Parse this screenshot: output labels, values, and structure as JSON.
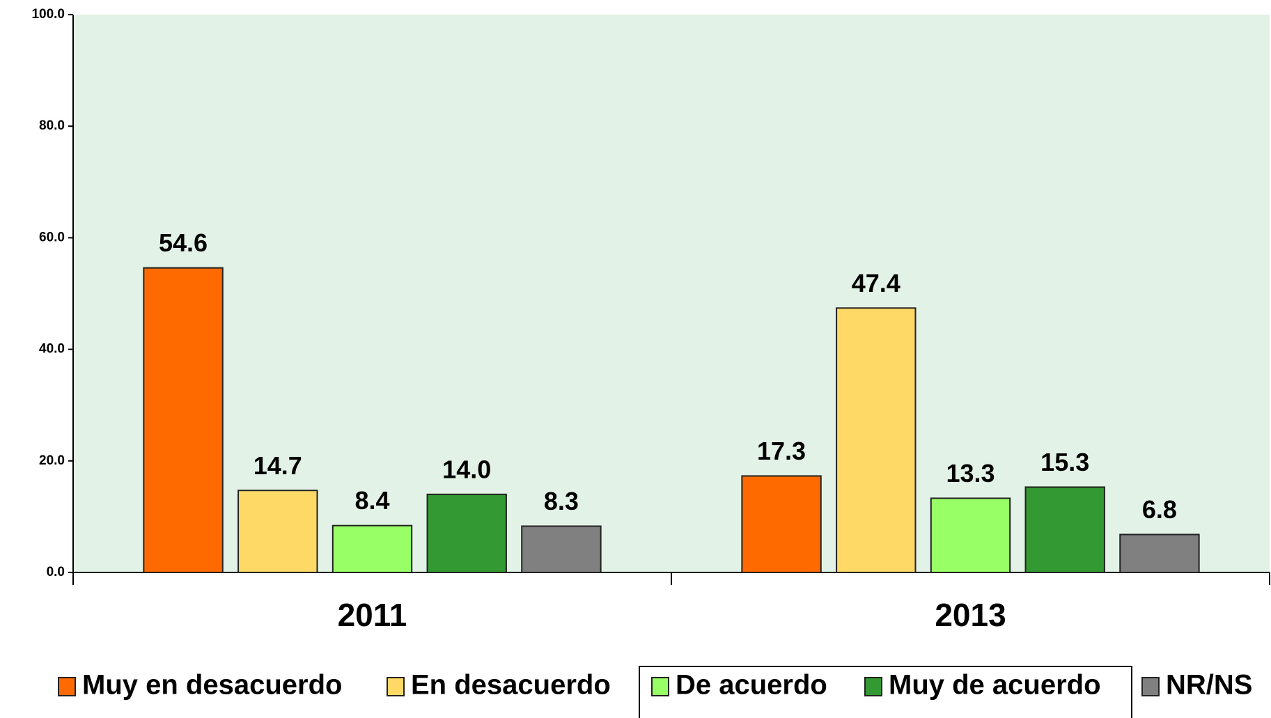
{
  "chart_data": {
    "type": "bar",
    "categories": [
      "2011",
      "2013"
    ],
    "series": [
      {
        "name": "Muy en desacuerdo",
        "color": "#ff6a00",
        "values": [
          54.6,
          17.3
        ],
        "value_labels": [
          "54.6",
          "17.3"
        ]
      },
      {
        "name": "En desacuerdo",
        "color": "#ffd966",
        "values": [
          14.7,
          47.4
        ],
        "value_labels": [
          "14.7",
          "47.4"
        ]
      },
      {
        "name": "De acuerdo",
        "color": "#99ff66",
        "values": [
          8.4,
          13.3
        ],
        "value_labels": [
          "8.4",
          "13.3"
        ]
      },
      {
        "name": "Muy de acuerdo",
        "color": "#339933",
        "values": [
          14.0,
          15.3
        ],
        "value_labels": [
          "14.0",
          "15.3"
        ]
      },
      {
        "name": "NR/NS",
        "color": "#808080",
        "values": [
          8.3,
          6.8
        ],
        "value_labels": [
          "8.3",
          "6.8"
        ]
      }
    ],
    "ylim": [
      0,
      100
    ],
    "yticks": [
      {
        "value": 0,
        "label": "0.0"
      },
      {
        "value": 20,
        "label": "20.0"
      },
      {
        "value": 40,
        "label": "40.0"
      },
      {
        "value": 60,
        "label": "60.0"
      },
      {
        "value": 80,
        "label": "80.0"
      },
      {
        "value": 100,
        "label": "100.0"
      }
    ],
    "grid": false,
    "legend": "bottom"
  }
}
